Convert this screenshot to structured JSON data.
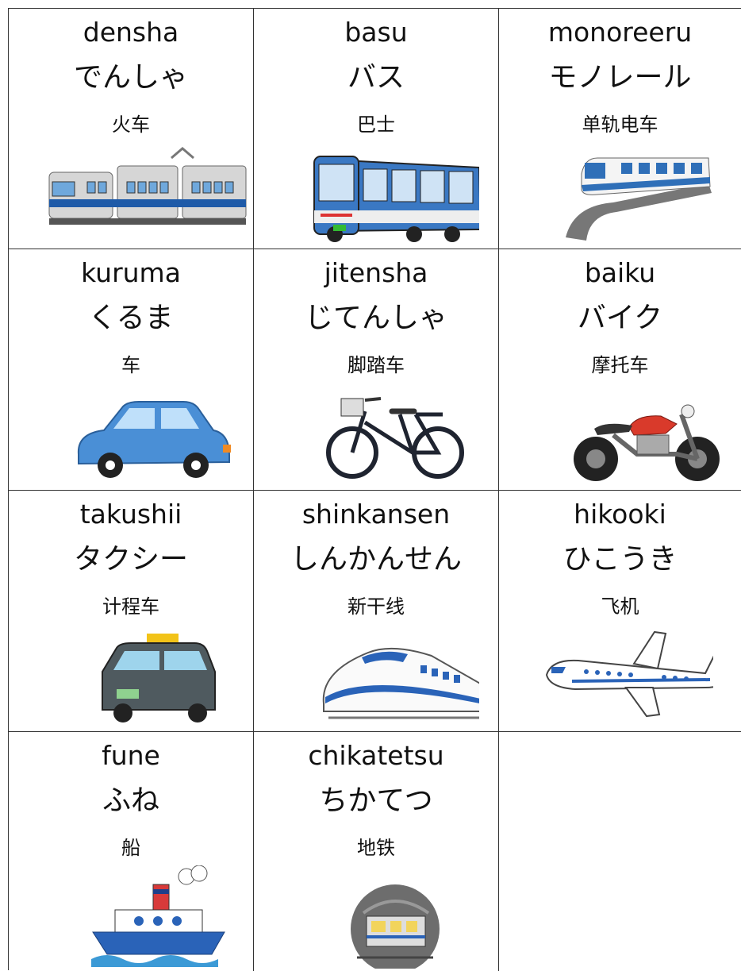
{
  "table": {
    "rows": [
      [
        {
          "romaji": "densha",
          "kana": "でんしゃ",
          "chinese": "火车"
        },
        {
          "romaji": "basu",
          "kana": "バス",
          "chinese": "巴士"
        },
        {
          "romaji": "monoreeru",
          "kana": "モノレール",
          "chinese": "单轨电车"
        }
      ],
      [
        {
          "romaji": "kuruma",
          "kana": "くるま",
          "chinese": "车"
        },
        {
          "romaji": "jitensha",
          "kana": "じてんしゃ",
          "chinese": "脚踏车"
        },
        {
          "romaji": "baiku",
          "kana": "バイク",
          "chinese": "摩托车"
        }
      ],
      [
        {
          "romaji": "takushii",
          "kana": "タクシー",
          "chinese": "计程车"
        },
        {
          "romaji": "shinkansen",
          "kana": "しんかんせん",
          "chinese": "新干线"
        },
        {
          "romaji": "hikooki",
          "kana": "ひこうき",
          "chinese": "飞机"
        }
      ],
      [
        {
          "romaji": "fune",
          "kana": "ふね",
          "chinese": "船"
        },
        {
          "romaji": "chikatetsu",
          "kana": "ちかてつ",
          "chinese": "地铁"
        }
      ]
    ]
  }
}
